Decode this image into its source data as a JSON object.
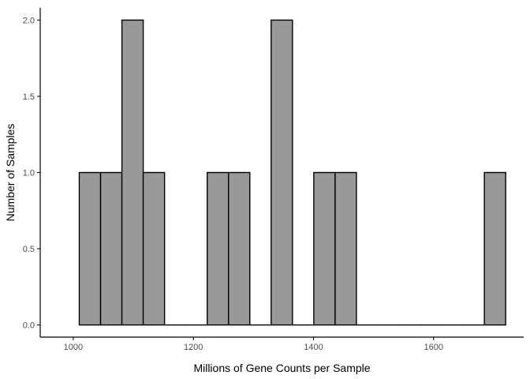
{
  "chart_data": {
    "type": "bar",
    "xlabel": "Millions of Gene Counts per Sample",
    "ylabel": "Number of Samples",
    "xlim": [
      945,
      1750
    ],
    "ylim": [
      -0.08,
      2.08
    ],
    "grid": false,
    "x_ticks": [
      {
        "value": 1000,
        "label": "1000"
      },
      {
        "value": 1200,
        "label": "1200"
      },
      {
        "value": 1400,
        "label": "1400"
      },
      {
        "value": 1600,
        "label": "1600"
      }
    ],
    "y_ticks": [
      {
        "value": 0.0,
        "label": "0.0"
      },
      {
        "value": 0.5,
        "label": "0.5"
      },
      {
        "value": 1.0,
        "label": "1.0"
      },
      {
        "value": 1.5,
        "label": "1.5"
      },
      {
        "value": 2.0,
        "label": "2.0"
      }
    ],
    "bin_edges": [
      1010,
      1045.5,
      1081,
      1116.5,
      1152,
      1187.5,
      1223,
      1258.5,
      1294,
      1329.5,
      1365,
      1400.5,
      1436,
      1471.5,
      1507,
      1542.5,
      1578,
      1613.5,
      1649,
      1684.5,
      1720
    ],
    "values": [
      1,
      1,
      2,
      1,
      0,
      0,
      1,
      1,
      0,
      2,
      0,
      1,
      1,
      0,
      0,
      0,
      0,
      0,
      0,
      1
    ],
    "colors": {
      "bar_fill": "#999999",
      "bar_stroke": "#000000",
      "axis": "#000000",
      "tick_text": "#4d4d4d"
    }
  }
}
